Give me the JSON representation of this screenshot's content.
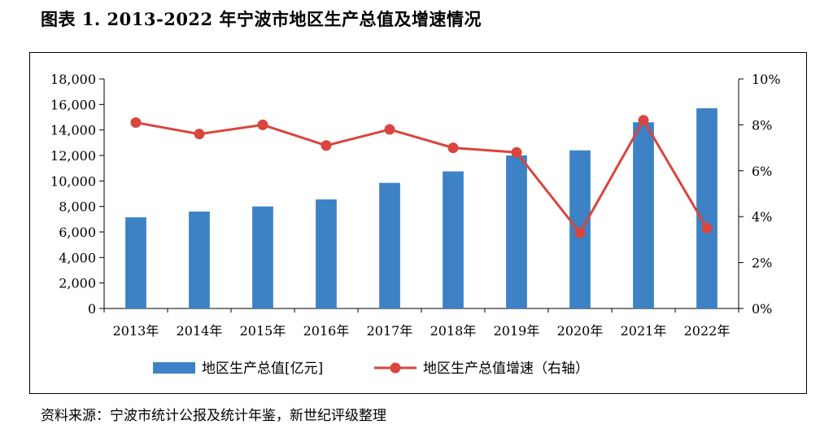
{
  "title": "图表 1.   2013-2022 年宁波市地区生产总值及增速情况",
  "source": "资料来源：宁波市统计公报及统计年鉴，新世纪评级整理",
  "chart_data": {
    "type": "bar",
    "title": "",
    "categories": [
      "2013年",
      "2014年",
      "2015年",
      "2016年",
      "2017年",
      "2018年",
      "2019年",
      "2020年",
      "2021年",
      "2022年"
    ],
    "series": [
      {
        "name": "地区生产总值[亿元]",
        "type": "bar",
        "axis": "left",
        "color": "#3d82c4",
        "values": [
          7150,
          7600,
          8000,
          8550,
          9850,
          10750,
          12000,
          12400,
          14600,
          15700
        ]
      },
      {
        "name": "地区生产总值增速（右轴）",
        "type": "line",
        "axis": "right",
        "color": "#d9453f",
        "values": [
          8.1,
          7.6,
          8.0,
          7.1,
          7.8,
          7.0,
          6.8,
          3.3,
          8.2,
          3.5
        ]
      }
    ],
    "left_axis": {
      "min": 0,
      "max": 18000,
      "ticks": [
        "0",
        "2,000",
        "4,000",
        "6,000",
        "8,000",
        "10,000",
        "12,000",
        "14,000",
        "16,000",
        "18,000"
      ]
    },
    "right_axis": {
      "min": 0,
      "max": 10,
      "ticks": [
        "0%",
        "2%",
        "4%",
        "6%",
        "8%",
        "10%"
      ]
    },
    "grid": false,
    "legend_position": "bottom"
  }
}
